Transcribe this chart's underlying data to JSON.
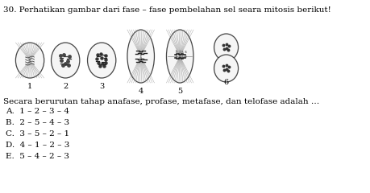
{
  "title": "30. Perhatikan gambar dari fase – fase pembelahan sel seara mitosis berikut!",
  "question": "Secara berurutan tahap anafase, profase, metafase, dan telofase adalah …",
  "options": [
    "A.  1 – 2 – 3 – 4",
    "B.  2 – 5 – 4 – 3",
    "C.  3 – 5 – 2 – 1",
    "D.  4 – 1 – 2 – 3",
    "E.  5 – 4 – 2 – 3"
  ],
  "bg_color": "#ffffff",
  "text_color": "#000000",
  "cell_labels": [
    "1",
    "2",
    "3",
    "4",
    "5",
    "6"
  ],
  "title_fontsize": 7.5,
  "text_fontsize": 7.5,
  "option_fontsize": 7.5
}
